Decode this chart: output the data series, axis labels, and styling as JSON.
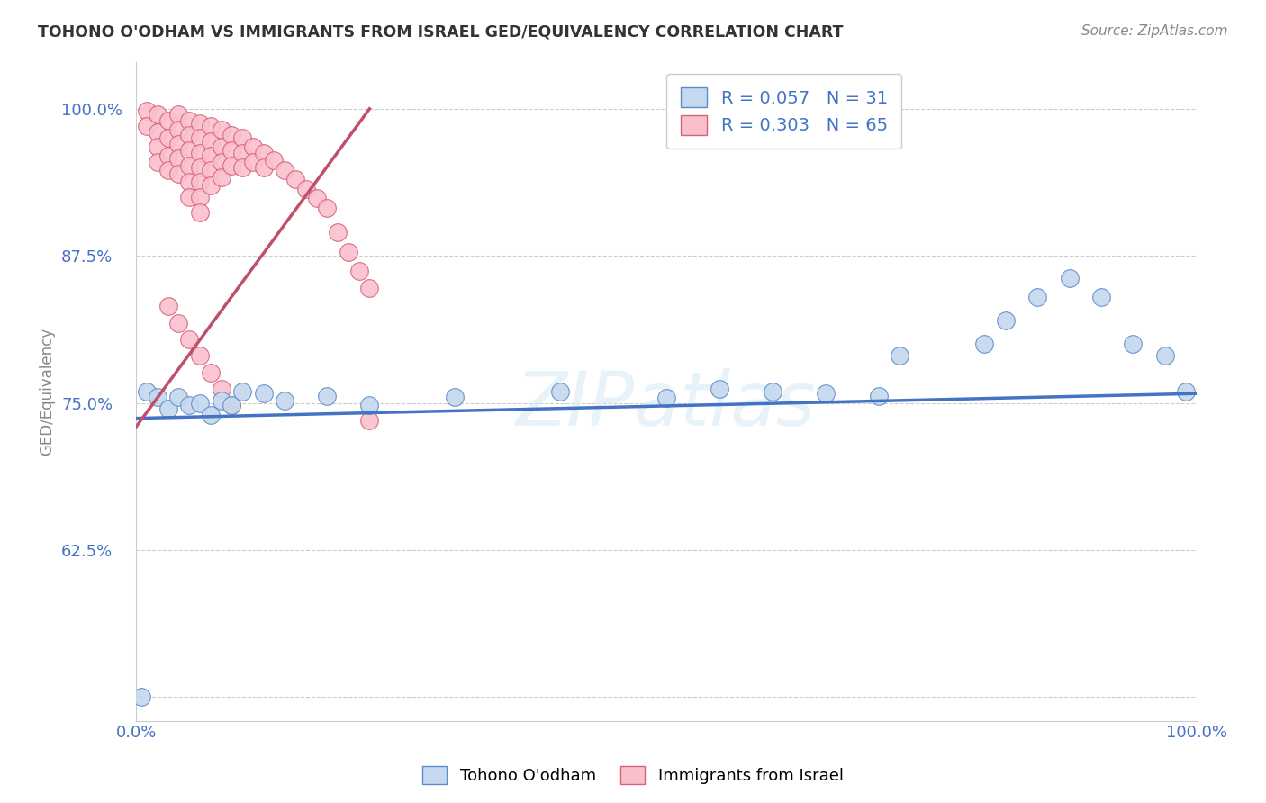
{
  "title": "TOHONO O'ODHAM VS IMMIGRANTS FROM ISRAEL GED/EQUIVALENCY CORRELATION CHART",
  "source": "Source: ZipAtlas.com",
  "ylabel": "GED/Equivalency",
  "watermark": "ZIPatlas",
  "blue_R": 0.057,
  "blue_N": 31,
  "pink_R": 0.303,
  "pink_N": 65,
  "blue_color": "#c5d8ef",
  "pink_color": "#f9c0cc",
  "blue_edge_color": "#5b8dc8",
  "pink_edge_color": "#d9607a",
  "blue_line_color": "#4472c4",
  "pink_line_color": "#c0506a",
  "legend_text_color": "#4472c4",
  "ytick_color": "#4472c4",
  "xtick_color": "#4472c4",
  "title_color": "#333333",
  "background_color": "#ffffff",
  "grid_color": "#cccccc",
  "blue_x": [
    0.005,
    0.01,
    0.02,
    0.03,
    0.04,
    0.05,
    0.06,
    0.07,
    0.08,
    0.09,
    0.1,
    0.12,
    0.14,
    0.18,
    0.22,
    0.3,
    0.4,
    0.5,
    0.55,
    0.6,
    0.65,
    0.7,
    0.72,
    0.8,
    0.82,
    0.85,
    0.88,
    0.91,
    0.94,
    0.97,
    0.99
  ],
  "blue_y": [
    0.5,
    0.76,
    0.755,
    0.745,
    0.755,
    0.748,
    0.75,
    0.74,
    0.752,
    0.748,
    0.76,
    0.758,
    0.752,
    0.756,
    0.748,
    0.755,
    0.76,
    0.754,
    0.762,
    0.76,
    0.758,
    0.756,
    0.79,
    0.8,
    0.82,
    0.84,
    0.856,
    0.84,
    0.8,
    0.79,
    0.76
  ],
  "pink_x": [
    0.01,
    0.01,
    0.02,
    0.02,
    0.02,
    0.02,
    0.03,
    0.03,
    0.03,
    0.03,
    0.04,
    0.04,
    0.04,
    0.04,
    0.04,
    0.05,
    0.05,
    0.05,
    0.05,
    0.05,
    0.05,
    0.06,
    0.06,
    0.06,
    0.06,
    0.06,
    0.06,
    0.06,
    0.07,
    0.07,
    0.07,
    0.07,
    0.07,
    0.08,
    0.08,
    0.08,
    0.08,
    0.09,
    0.09,
    0.09,
    0.1,
    0.1,
    0.1,
    0.11,
    0.11,
    0.12,
    0.12,
    0.13,
    0.14,
    0.15,
    0.16,
    0.17,
    0.18,
    0.19,
    0.2,
    0.21,
    0.22,
    0.03,
    0.04,
    0.05,
    0.06,
    0.07,
    0.08,
    0.09,
    0.22
  ],
  "pink_y": [
    0.998,
    0.985,
    0.995,
    0.98,
    0.968,
    0.955,
    0.99,
    0.975,
    0.96,
    0.948,
    0.995,
    0.982,
    0.97,
    0.958,
    0.945,
    0.99,
    0.978,
    0.965,
    0.952,
    0.938,
    0.925,
    0.988,
    0.975,
    0.962,
    0.95,
    0.938,
    0.925,
    0.912,
    0.985,
    0.972,
    0.96,
    0.948,
    0.935,
    0.982,
    0.968,
    0.955,
    0.942,
    0.978,
    0.965,
    0.952,
    0.975,
    0.962,
    0.95,
    0.968,
    0.955,
    0.962,
    0.95,
    0.956,
    0.948,
    0.94,
    0.932,
    0.924,
    0.916,
    0.895,
    0.878,
    0.862,
    0.848,
    0.832,
    0.818,
    0.804,
    0.79,
    0.776,
    0.762,
    0.748,
    0.735
  ],
  "xlim": [
    0.0,
    1.0
  ],
  "ylim": [
    0.48,
    1.04
  ],
  "yticks": [
    0.5,
    0.625,
    0.75,
    0.875,
    1.0
  ],
  "ytick_labels": [
    "",
    "62.5%",
    "75.0%",
    "87.5%",
    "100.0%"
  ],
  "legend_label_blue": "Tohono O'odham",
  "legend_label_pink": "Immigrants from Israel"
}
